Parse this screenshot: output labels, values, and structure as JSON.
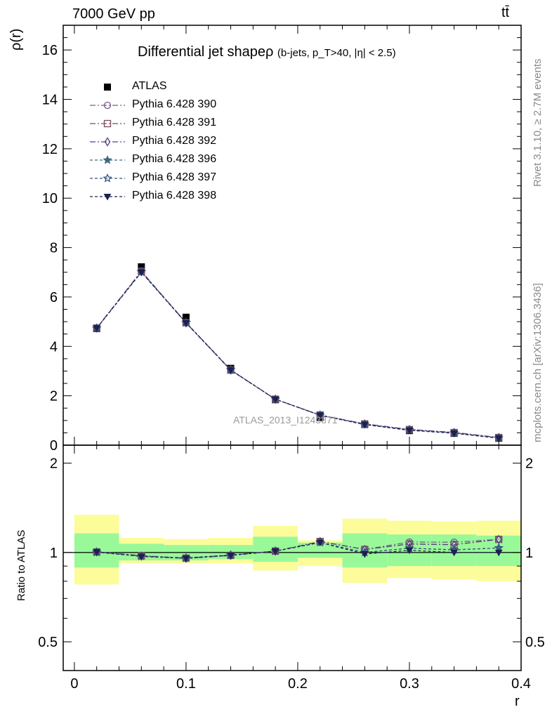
{
  "header": {
    "left": "7000 GeV pp",
    "right": "tt̄"
  },
  "side_labels": {
    "rivet": "Rivet 3.1.10, ≥ 2.7M events",
    "mcplots": "mcplots.cern.ch [arXiv:1306.3436]"
  },
  "watermark": "ATLAS_2013_I1243871",
  "colors": {
    "band_inner": "#99f999",
    "band_outer": "#fcfc9a"
  },
  "chart_data": {
    "type": "line",
    "title": "Differential jet shapeρ",
    "title_sub": "(b-jets, p_T>40, |η| < 2.5)",
    "xlabel": "r",
    "ylabel": "ρ(r)",
    "ratio_ylabel": "Ratio to ATLAS",
    "xlim": [
      -0.01,
      0.4
    ],
    "ylim": [
      0,
      17
    ],
    "ratio_ylim": [
      0.4,
      2.3
    ],
    "ratio_scale": "log",
    "x_ticks": [
      {
        "v": 0,
        "t": "0"
      },
      {
        "v": 0.1,
        "t": "0.1"
      },
      {
        "v": 0.2,
        "t": "0.2"
      },
      {
        "v": 0.3,
        "t": "0.3"
      },
      {
        "v": 0.4,
        "t": "0.4"
      }
    ],
    "y_ticks": [
      {
        "v": 0,
        "t": "0"
      },
      {
        "v": 2,
        "t": "2"
      },
      {
        "v": 4,
        "t": "4"
      },
      {
        "v": 6,
        "t": "6"
      },
      {
        "v": 8,
        "t": "8"
      },
      {
        "v": 10,
        "t": "10"
      },
      {
        "v": 12,
        "t": "12"
      },
      {
        "v": 14,
        "t": "14"
      },
      {
        "v": 16,
        "t": "16"
      }
    ],
    "ratio_ticks": [
      {
        "v": 0.5,
        "t": "0.5"
      },
      {
        "v": 1,
        "t": "1"
      },
      {
        "v": 2,
        "t": "2"
      }
    ],
    "bin_edges": [
      0,
      0.04,
      0.08,
      0.12,
      0.16,
      0.2,
      0.24,
      0.28,
      0.32,
      0.36,
      0.4
    ],
    "x": [
      0.02,
      0.06,
      0.1,
      0.14,
      0.18,
      0.22,
      0.26,
      0.3,
      0.34,
      0.38
    ],
    "data": {
      "name": "ATLAS",
      "values": [
        4.72,
        7.22,
        5.18,
        3.11,
        1.84,
        1.12,
        0.84,
        0.59,
        0.48,
        0.28
      ]
    },
    "ratio_band_inner": [
      [
        0.89,
        1.16
      ],
      [
        0.94,
        1.07
      ],
      [
        0.94,
        1.06
      ],
      [
        0.95,
        1.06
      ],
      [
        0.93,
        1.13
      ],
      [
        0.96,
        1.08
      ],
      [
        0.89,
        1.16
      ],
      [
        0.9,
        1.15
      ],
      [
        0.9,
        1.15
      ],
      [
        0.9,
        1.14
      ]
    ],
    "ratio_band_outer": [
      [
        0.78,
        1.34
      ],
      [
        0.92,
        1.12
      ],
      [
        0.92,
        1.11
      ],
      [
        0.92,
        1.12
      ],
      [
        0.87,
        1.23
      ],
      [
        0.9,
        1.1
      ],
      [
        0.79,
        1.3
      ],
      [
        0.82,
        1.28
      ],
      [
        0.81,
        1.27
      ],
      [
        0.8,
        1.28
      ]
    ],
    "series": [
      {
        "name": "Pythia 6.428 390",
        "color": "#7d5a86",
        "marker": "circle",
        "dash": "8,3,2,3",
        "values": [
          4.75,
          7.05,
          4.95,
          3.05,
          1.86,
          1.22,
          0.86,
          0.64,
          0.52,
          0.31
        ]
      },
      {
        "name": "Pythia 6.428 391",
        "color": "#7a4e5a",
        "marker": "square",
        "dash": "8,3,2,3",
        "values": [
          4.74,
          7.04,
          4.96,
          3.04,
          1.86,
          1.22,
          0.86,
          0.63,
          0.51,
          0.31
        ]
      },
      {
        "name": "Pythia 6.428 392",
        "color": "#5a3e8c",
        "marker": "diamond",
        "dash": "8,3,2,3",
        "values": [
          4.74,
          7.02,
          4.95,
          3.04,
          1.86,
          1.22,
          0.86,
          0.63,
          0.51,
          0.31
        ]
      },
      {
        "name": "Pythia 6.428 396",
        "color": "#3f6a7e",
        "marker": "star",
        "dash": "4,3",
        "values": [
          4.73,
          7.02,
          4.97,
          3.05,
          1.86,
          1.21,
          0.84,
          0.61,
          0.49,
          0.29
        ]
      },
      {
        "name": "Pythia 6.428 397",
        "color": "#34527c",
        "marker": "star-open",
        "dash": "4,3",
        "values": [
          4.73,
          7.01,
          4.96,
          3.05,
          1.86,
          1.21,
          0.84,
          0.61,
          0.49,
          0.29
        ]
      },
      {
        "name": "Pythia 6.428 398",
        "color": "#1c2052",
        "marker": "triangle-down",
        "dash": "4,3",
        "values": [
          4.74,
          7.0,
          4.95,
          3.04,
          1.86,
          1.21,
          0.83,
          0.6,
          0.48,
          0.28
        ]
      }
    ]
  }
}
